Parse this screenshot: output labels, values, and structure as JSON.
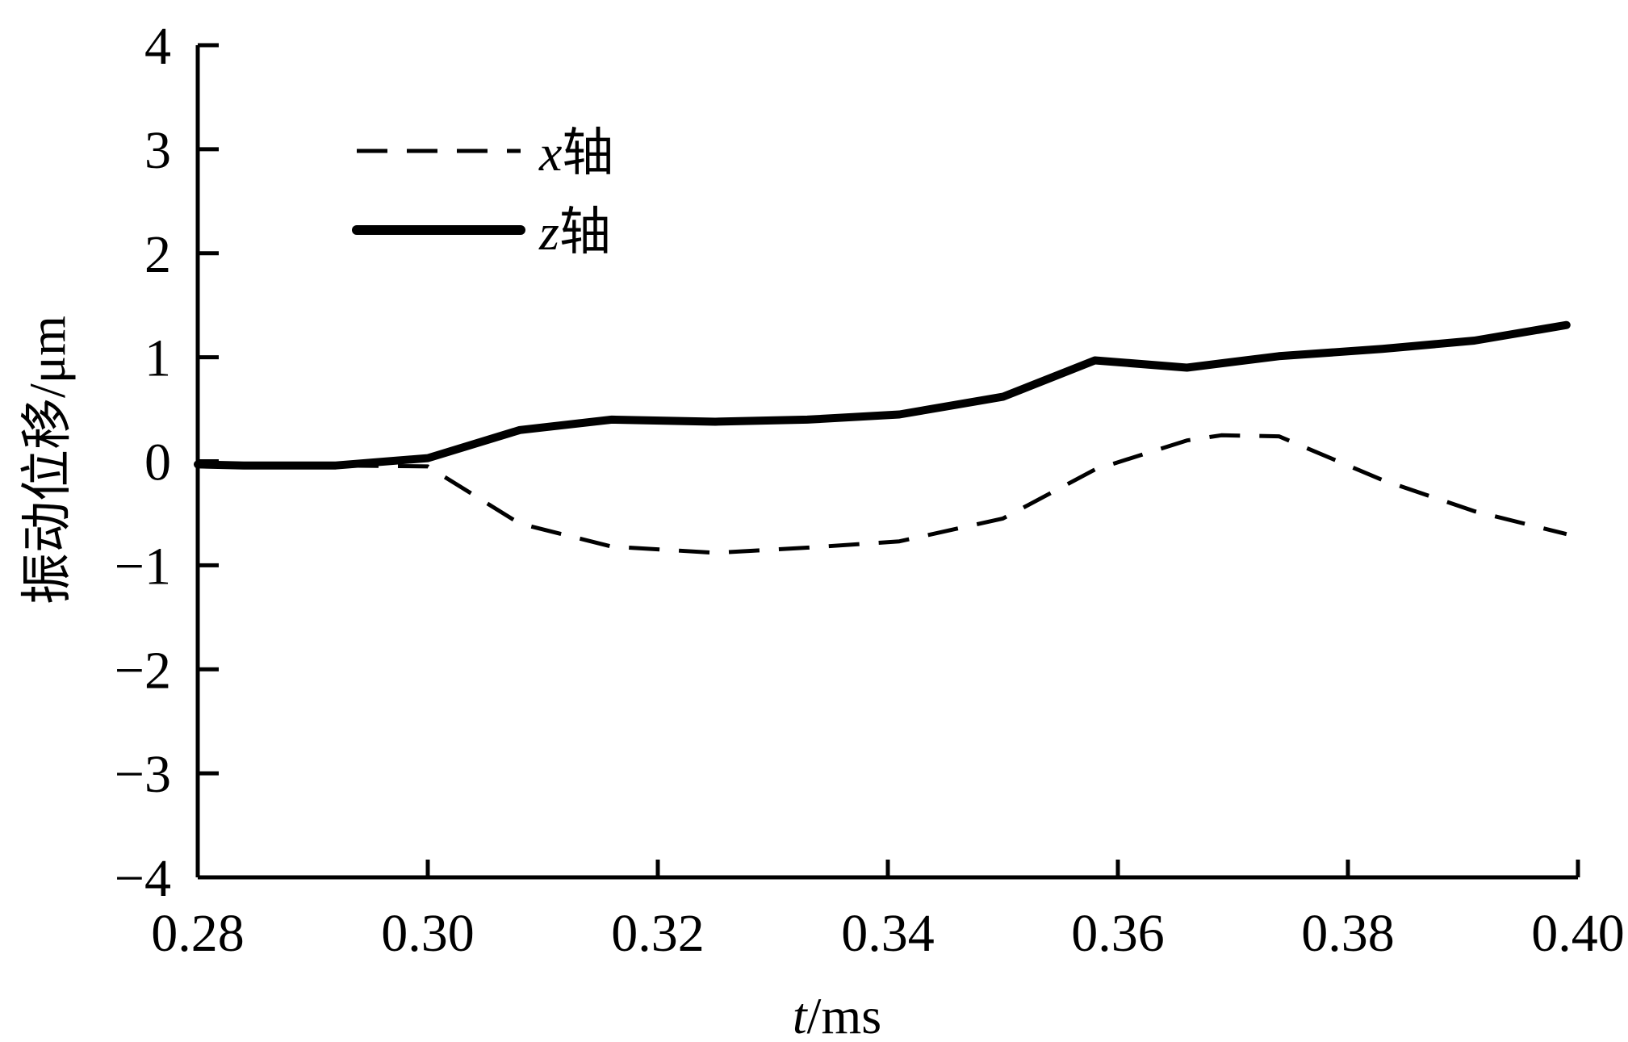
{
  "chart_data": {
    "type": "line",
    "title": "",
    "xlabel": {
      "var": "t",
      "unit": "/ms"
    },
    "ylabel": "振动位移/μm",
    "xlim": [
      0.28,
      0.4
    ],
    "ylim": [
      -4,
      4
    ],
    "x_ticks": [
      "0.28",
      "0.30",
      "0.32",
      "0.34",
      "0.36",
      "0.38",
      "0.40"
    ],
    "x_tick_values": [
      0.28,
      0.3,
      0.32,
      0.34,
      0.36,
      0.38,
      0.4
    ],
    "y_ticks": [
      "4",
      "3",
      "2",
      "1",
      "0",
      "−1",
      "−2",
      "−3",
      "−4"
    ],
    "y_tick_values": [
      4,
      3,
      2,
      1,
      0,
      -1,
      -2,
      -3,
      -4
    ],
    "grid": false,
    "legend_position": "top-left",
    "series": [
      {
        "name": "轴",
        "name_var": "x",
        "style": "dashed",
        "x": [
          0.28,
          0.284,
          0.292,
          0.3,
          0.308,
          0.316,
          0.325,
          0.333,
          0.341,
          0.35,
          0.358,
          0.366,
          0.369,
          0.374,
          0.383,
          0.391,
          0.399
        ],
        "y": [
          -0.03,
          -0.03,
          -0.04,
          -0.05,
          -0.6,
          -0.82,
          -0.88,
          -0.83,
          -0.77,
          -0.55,
          -0.08,
          0.2,
          0.25,
          0.24,
          -0.18,
          -0.48,
          -0.7
        ]
      },
      {
        "name": "轴",
        "name_var": "z",
        "style": "solid",
        "x": [
          0.28,
          0.284,
          0.292,
          0.3,
          0.308,
          0.316,
          0.325,
          0.333,
          0.341,
          0.35,
          0.358,
          0.366,
          0.374,
          0.383,
          0.391,
          0.399
        ],
        "y": [
          -0.03,
          -0.04,
          -0.04,
          0.03,
          0.3,
          0.4,
          0.38,
          0.4,
          0.45,
          0.62,
          0.97,
          0.9,
          1.01,
          1.08,
          1.16,
          1.31
        ]
      }
    ]
  }
}
